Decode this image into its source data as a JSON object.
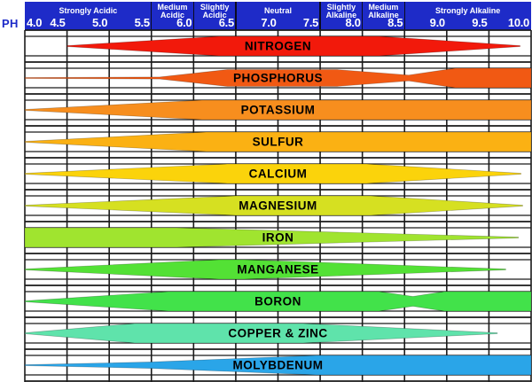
{
  "header": {
    "ph_label": "PH",
    "bar_color": "#1E2BC8",
    "categories": [
      {
        "lines": [
          "Strongly Acidic"
        ],
        "from": 4.0,
        "to": 5.5
      },
      {
        "lines": [
          "Medium",
          "Acidic"
        ],
        "from": 5.5,
        "to": 6.0
      },
      {
        "lines": [
          "Slightly",
          "Acidic"
        ],
        "from": 6.0,
        "to": 6.5
      },
      {
        "lines": [
          "Neutral"
        ],
        "from": 6.5,
        "to": 7.5
      },
      {
        "lines": [
          "Slightly",
          "Alkaline"
        ],
        "from": 7.5,
        "to": 8.0
      },
      {
        "lines": [
          "Medium",
          "Alkaline"
        ],
        "from": 8.0,
        "to": 8.5
      },
      {
        "lines": [
          "Strongly Alkaline"
        ],
        "from": 8.5,
        "to": 10.0
      }
    ],
    "ticks": [
      "4.0",
      "4.5",
      "5.0",
      "5.5",
      "6.0",
      "6.5",
      "7.0",
      "7.5",
      "8.0",
      "8.5",
      "9.0",
      "9.5",
      "10.0"
    ]
  },
  "grid": {
    "line_color": "#1A1A1A"
  },
  "chart_data": {
    "type": "area",
    "xlabel": "PH",
    "x_range": [
      4.0,
      10.0
    ],
    "x_tick_step": 0.5,
    "grid": "on",
    "description": "Band thickness = relative nutrient availability at each soil pH (0 = none, 1 = maximum)",
    "nutrients": [
      {
        "name": "NITROGEN",
        "color": "#F2190B",
        "shape": [
          [
            4.5,
            0.02
          ],
          [
            6.3,
            1
          ],
          [
            8.2,
            1
          ],
          [
            9.87,
            0.02
          ]
        ]
      },
      {
        "name": "PHOSPHORUS",
        "color": "#F15913",
        "shape": [
          [
            4.0,
            0.05
          ],
          [
            5.6,
            0.1
          ],
          [
            6.4,
            0.86
          ],
          [
            7.7,
            0.86
          ],
          [
            8.55,
            0.3
          ],
          [
            9.1,
            1
          ],
          [
            10,
            1
          ]
        ]
      },
      {
        "name": "POTASSIUM",
        "color": "#F78E1E",
        "shape": [
          [
            4.0,
            0.04
          ],
          [
            6.1,
            1
          ],
          [
            10,
            1
          ]
        ]
      },
      {
        "name": "SULFUR",
        "color": "#FBB113",
        "shape": [
          [
            4.0,
            0.04
          ],
          [
            6.15,
            1
          ],
          [
            10,
            1
          ]
        ]
      },
      {
        "name": "CALCIUM",
        "color": "#FBD30B",
        "shape": [
          [
            4.0,
            0.04
          ],
          [
            6.4,
            1
          ],
          [
            8.05,
            1
          ],
          [
            9.88,
            0.02
          ]
        ]
      },
      {
        "name": "MAGNESIUM",
        "color": "#D6E021",
        "shape": [
          [
            4.0,
            0.04
          ],
          [
            6.5,
            1
          ],
          [
            8.1,
            1
          ],
          [
            9.9,
            0.02
          ]
        ]
      },
      {
        "name": "IRON",
        "color": "#A0E42F",
        "shape": [
          [
            4.0,
            1
          ],
          [
            5.8,
            1
          ],
          [
            9.85,
            0.02
          ]
        ]
      },
      {
        "name": "MANGANESE",
        "color": "#53E135",
        "shape": [
          [
            4.0,
            0.04
          ],
          [
            6.3,
            1
          ],
          [
            6.6,
            1
          ],
          [
            9.7,
            0.02
          ]
        ]
      },
      {
        "name": "BORON",
        "color": "#42E24A",
        "shape": [
          [
            4.0,
            0.04
          ],
          [
            5.7,
            1
          ],
          [
            8.2,
            1
          ],
          [
            8.6,
            0.5
          ],
          [
            8.97,
            1
          ],
          [
            10,
            1
          ]
        ]
      },
      {
        "name": "COPPER & ZINC",
        "color": "#5FE3AB",
        "shape": [
          [
            4.0,
            0.04
          ],
          [
            5.3,
            1
          ],
          [
            7.3,
            1
          ],
          [
            9.6,
            0.02
          ]
        ]
      },
      {
        "name": "MOLYBDENUM",
        "color": "#2AA5E8",
        "shape": [
          [
            4.0,
            0.04
          ],
          [
            5.5,
            0.33
          ],
          [
            7.45,
            1
          ],
          [
            10,
            1
          ]
        ]
      }
    ]
  }
}
